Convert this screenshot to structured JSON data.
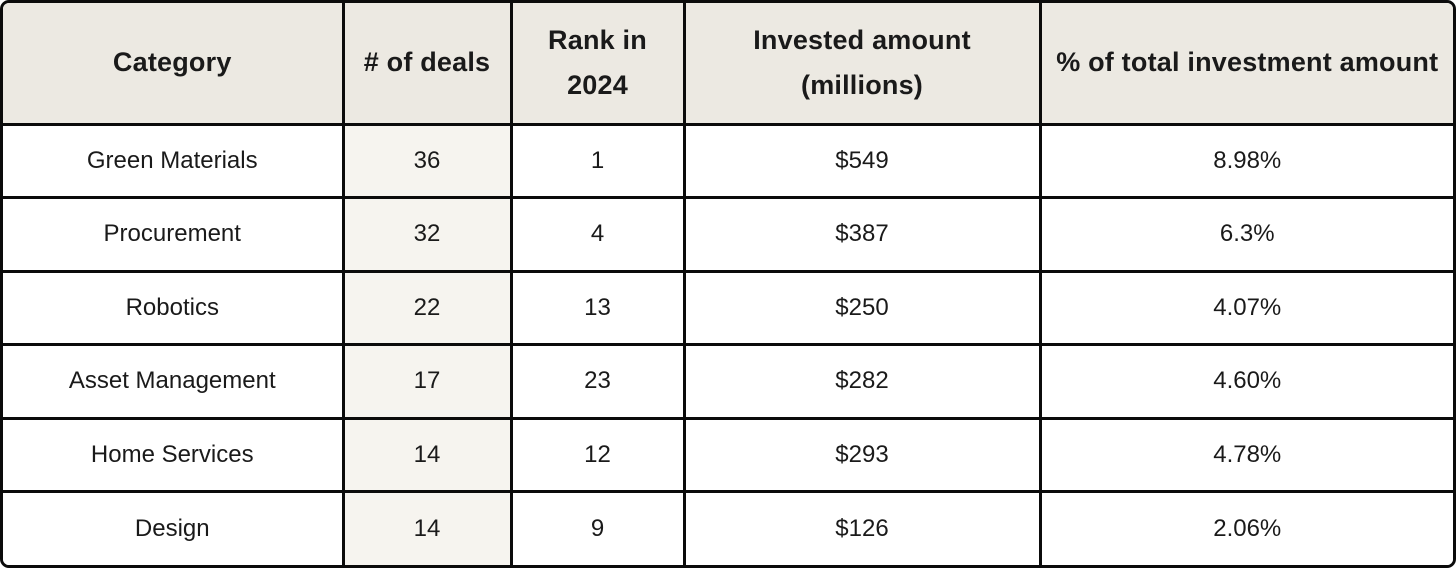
{
  "colors": {
    "header_background": "#ece9e2",
    "deals_column_background": "#f6f4ef",
    "cell_background": "#ffffff",
    "border": "#0b0b0b",
    "text": "#1a1a1a"
  },
  "table": {
    "columns": [
      {
        "label": "Category"
      },
      {
        "label": "# of deals"
      },
      {
        "label": "Rank in 2024"
      },
      {
        "label": "Invested amount (millions)"
      },
      {
        "label": "% of total investment amount"
      }
    ],
    "rows": [
      {
        "category": "Green Materials",
        "deals": "36",
        "rank": "1",
        "invested": "$549",
        "pct": "8.98%"
      },
      {
        "category": "Procurement",
        "deals": "32",
        "rank": "4",
        "invested": "$387",
        "pct": "6.3%"
      },
      {
        "category": "Robotics",
        "deals": "22",
        "rank": "13",
        "invested": "$250",
        "pct": "4.07%"
      },
      {
        "category": "Asset Management",
        "deals": "17",
        "rank": "23",
        "invested": "$282",
        "pct": "4.60%"
      },
      {
        "category": "Home Services",
        "deals": "14",
        "rank": "12",
        "invested": "$293",
        "pct": "4.78%"
      },
      {
        "category": "Design",
        "deals": "14",
        "rank": "9",
        "invested": "$126",
        "pct": "2.06%"
      }
    ]
  },
  "chart_data": {
    "type": "table",
    "columns": [
      "Category",
      "# of deals",
      "Rank in 2024",
      "Invested amount (millions)",
      "% of total investment amount"
    ],
    "rows": [
      [
        "Green Materials",
        36,
        1,
        "$549",
        "8.98%"
      ],
      [
        "Procurement",
        32,
        4,
        "$387",
        "6.3%"
      ],
      [
        "Robotics",
        22,
        13,
        "$250",
        "4.07%"
      ],
      [
        "Asset Management",
        17,
        23,
        "$282",
        "4.60%"
      ],
      [
        "Home Services",
        14,
        12,
        "$293",
        "4.78%"
      ],
      [
        "Design",
        14,
        9,
        "$126",
        "2.06%"
      ]
    ]
  }
}
